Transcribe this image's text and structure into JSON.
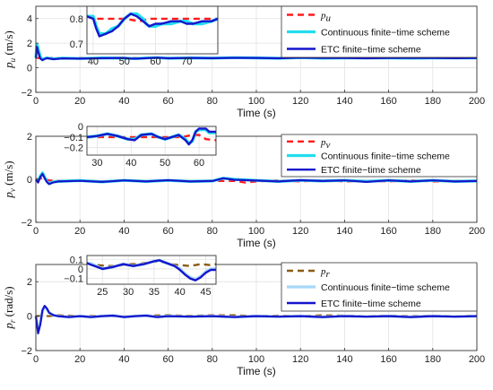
{
  "chart_data": [
    {
      "type": "line",
      "xlabel": "Time (s)",
      "ylabel_symbol": "p",
      "ylabel_sub": "u",
      "ylabel_unit": "(m/s)",
      "xlim": [
        0,
        200
      ],
      "ylim": [
        -2,
        5
      ],
      "xticks": [
        0,
        20,
        40,
        60,
        80,
        100,
        120,
        140,
        160,
        180,
        200
      ],
      "yticks": [
        -2,
        0,
        2,
        4
      ],
      "grid": true,
      "legend_position": "top-right",
      "series": [
        {
          "name": "p",
          "name_sub": "u",
          "color": "#ff1a1a",
          "style": "dashed",
          "x": [
            0,
            2,
            5,
            10,
            20,
            30,
            40,
            50,
            60,
            70,
            80,
            90,
            100,
            110,
            120,
            130,
            140,
            150,
            160,
            170,
            180,
            190,
            200
          ],
          "y": [
            0.8,
            0.8,
            0.8,
            0.8,
            0.8,
            0.8,
            0.79,
            0.8,
            0.8,
            0.8,
            0.8,
            0.8,
            0.8,
            0.8,
            0.8,
            0.8,
            0.8,
            0.8,
            0.8,
            0.8,
            0.8,
            0.8,
            0.8
          ]
        },
        {
          "name": "Continuous finite−time scheme",
          "color": "#22ddee",
          "style": "solid",
          "x": [
            0,
            0.5,
            1,
            2,
            3,
            4,
            5,
            8,
            12,
            20,
            30,
            40,
            45,
            50,
            55,
            60,
            70,
            80,
            90,
            100,
            110,
            120,
            130,
            140,
            150,
            160,
            170,
            180,
            190,
            200
          ],
          "y": [
            0.8,
            1.9,
            1.6,
            0.9,
            0.65,
            0.75,
            0.8,
            0.72,
            0.78,
            0.75,
            0.8,
            0.78,
            0.74,
            0.79,
            0.82,
            0.77,
            0.8,
            0.78,
            0.82,
            0.8,
            0.77,
            0.82,
            0.78,
            0.8,
            0.79,
            0.8,
            0.78,
            0.8,
            0.79,
            0.8
          ]
        },
        {
          "name": "ETC finite−time scheme",
          "color": "#1515cc",
          "style": "solid",
          "x": [
            0,
            0.5,
            1,
            2,
            3,
            4,
            5,
            8,
            12,
            20,
            30,
            40,
            43,
            46,
            50,
            55,
            60,
            70,
            80,
            90,
            100,
            110,
            120,
            130,
            140,
            150,
            160,
            170,
            180,
            190,
            200
          ],
          "y": [
            0.8,
            1.7,
            1.3,
            0.75,
            0.62,
            0.72,
            0.78,
            0.7,
            0.76,
            0.74,
            0.78,
            0.8,
            0.75,
            0.74,
            0.78,
            0.82,
            0.77,
            0.8,
            0.78,
            0.81,
            0.8,
            0.77,
            0.82,
            0.79,
            0.8,
            0.77,
            0.8,
            0.79,
            0.8,
            0.78,
            0.8
          ]
        }
      ],
      "inset": {
        "xlim": [
          38,
          80
        ],
        "ylim": [
          0.66,
          0.85
        ],
        "xticks": [
          40,
          50,
          60,
          70
        ],
        "yticks": [
          0.7,
          0.8
        ],
        "series": [
          {
            "x": [
              38,
              40,
              42,
              45,
              50,
              55,
              58,
              60,
              65,
              70,
              75,
              80
            ],
            "y": [
              0.81,
              0.8,
              0.8,
              0.8,
              0.8,
              0.79,
              0.8,
              0.8,
              0.8,
              0.8,
              0.8,
              0.8
            ]
          },
          {
            "x": [
              38,
              40,
              41,
              42,
              44,
              46,
              48,
              50,
              52,
              54,
              56,
              57,
              58,
              60,
              62,
              65,
              68,
              70,
              72,
              75,
              78,
              80
            ],
            "y": [
              0.81,
              0.81,
              0.77,
              0.74,
              0.74,
              0.76,
              0.77,
              0.8,
              0.82,
              0.82,
              0.8,
              0.78,
              0.77,
              0.77,
              0.78,
              0.78,
              0.79,
              0.79,
              0.78,
              0.78,
              0.79,
              0.8
            ]
          },
          {
            "x": [
              38,
              40,
              41,
              42,
              44,
              46,
              48,
              50,
              52,
              54,
              56,
              57,
              58,
              60,
              62,
              65,
              68,
              70,
              72,
              75,
              78,
              80
            ],
            "y": [
              0.81,
              0.8,
              0.76,
              0.73,
              0.74,
              0.75,
              0.77,
              0.8,
              0.82,
              0.81,
              0.79,
              0.78,
              0.77,
              0.78,
              0.78,
              0.79,
              0.79,
              0.78,
              0.78,
              0.79,
              0.79,
              0.8
            ]
          }
        ]
      }
    },
    {
      "type": "line",
      "xlabel": "Time (s)",
      "ylabel_symbol": "p",
      "ylabel_sub": "v",
      "ylabel_unit": "(m/s)",
      "xlim": [
        0,
        200
      ],
      "ylim": [
        -2,
        2
      ],
      "xticks": [
        0,
        20,
        40,
        60,
        80,
        100,
        120,
        140,
        160,
        180,
        200
      ],
      "yticks": [
        -2,
        0,
        2
      ],
      "grid": true,
      "legend_position": "top-right",
      "series": [
        {
          "name": "p",
          "name_sub": "v",
          "color": "#ff1a1a",
          "style": "dashed",
          "x": [
            0,
            3,
            6,
            10,
            20,
            30,
            40,
            50,
            60,
            70,
            80,
            90,
            95,
            100,
            110,
            120,
            130,
            140,
            150,
            160,
            170,
            180,
            190,
            200
          ],
          "y": [
            0,
            0.05,
            -0.05,
            -0.08,
            -0.05,
            -0.1,
            -0.05,
            -0.1,
            -0.05,
            -0.1,
            -0.08,
            -0.08,
            -0.15,
            -0.1,
            -0.05,
            -0.1,
            -0.05,
            -0.1,
            -0.08,
            -0.1,
            -0.05,
            -0.1,
            -0.08,
            -0.1
          ]
        },
        {
          "name": "Continuous finite−time scheme",
          "color": "#22ddee",
          "style": "solid",
          "x": [
            0,
            1,
            2,
            3,
            4,
            5,
            6,
            8,
            10,
            20,
            30,
            40,
            50,
            60,
            70,
            80,
            85,
            90,
            100,
            110,
            120,
            130,
            140,
            150,
            160,
            170,
            180,
            190,
            200
          ],
          "y": [
            0,
            -0.1,
            0.15,
            0.3,
            0.1,
            -0.1,
            -0.2,
            -0.12,
            -0.1,
            -0.06,
            -0.12,
            -0.05,
            -0.1,
            -0.05,
            -0.1,
            -0.08,
            0.05,
            0.0,
            -0.05,
            -0.1,
            -0.05,
            -0.08,
            -0.05,
            -0.1,
            -0.05,
            -0.1,
            -0.05,
            -0.1,
            -0.08
          ]
        },
        {
          "name": "ETC finite−time scheme",
          "color": "#1515cc",
          "style": "solid",
          "x": [
            0,
            1,
            2,
            3,
            4,
            5,
            6,
            8,
            10,
            20,
            30,
            40,
            50,
            60,
            70,
            80,
            85,
            90,
            100,
            110,
            120,
            130,
            140,
            150,
            160,
            170,
            180,
            190,
            200
          ],
          "y": [
            0,
            -0.15,
            0.1,
            0.25,
            0.05,
            -0.12,
            -0.22,
            -0.14,
            -0.1,
            -0.07,
            -0.12,
            -0.05,
            -0.1,
            -0.04,
            -0.1,
            -0.08,
            0.05,
            -0.02,
            -0.06,
            -0.1,
            -0.04,
            -0.08,
            -0.05,
            -0.12,
            -0.05,
            -0.1,
            -0.05,
            -0.1,
            -0.08
          ]
        }
      ],
      "inset": {
        "xlim": [
          27,
          65
        ],
        "ylim": [
          -0.27,
          0.0
        ],
        "xticks": [
          30,
          40,
          50,
          60
        ],
        "yticks": [
          -0.2,
          -0.1,
          0
        ],
        "series": [
          {
            "x": [
              27,
              30,
              35,
              40,
              45,
              50,
              55,
              58,
              60,
              62,
              65
            ],
            "y": [
              -0.1,
              -0.1,
              -0.1,
              -0.1,
              -0.1,
              -0.1,
              -0.1,
              -0.08,
              -0.08,
              -0.12,
              -0.13
            ]
          },
          {
            "x": [
              27,
              30,
              33,
              36,
              39,
              41,
              43,
              46,
              48,
              50,
              52,
              54,
              56,
              57,
              58,
              59,
              60,
              62,
              63,
              65
            ],
            "y": [
              -0.1,
              -0.09,
              -0.07,
              -0.09,
              -0.12,
              -0.12,
              -0.08,
              -0.07,
              -0.1,
              -0.12,
              -0.1,
              -0.08,
              -0.12,
              -0.16,
              -0.14,
              -0.05,
              -0.03,
              -0.03,
              -0.06,
              -0.06
            ]
          },
          {
            "x": [
              27,
              30,
              33,
              36,
              39,
              41,
              43,
              46,
              48,
              50,
              52,
              54,
              56,
              57,
              58,
              59,
              60,
              62,
              63,
              65
            ],
            "y": [
              -0.1,
              -0.09,
              -0.07,
              -0.09,
              -0.12,
              -0.13,
              -0.08,
              -0.07,
              -0.1,
              -0.12,
              -0.1,
              -0.08,
              -0.13,
              -0.17,
              -0.13,
              -0.05,
              -0.02,
              -0.02,
              -0.05,
              -0.05
            ]
          }
        ]
      }
    },
    {
      "type": "line",
      "xlabel": "Time (s)",
      "ylabel_symbol": "p",
      "ylabel_sub": "r",
      "ylabel_unit": "(rad/s)",
      "xlim": [
        0,
        200
      ],
      "ylim": [
        -2,
        3
      ],
      "xticks": [
        0,
        20,
        40,
        60,
        80,
        100,
        120,
        140,
        160,
        180,
        200
      ],
      "yticks": [
        -2,
        0,
        2
      ],
      "grid": true,
      "legend_position": "top-right",
      "series": [
        {
          "name": "p",
          "name_sub": "r",
          "color": "#8b5a14",
          "style": "dashed",
          "x": [
            0,
            3,
            6,
            10,
            20,
            30,
            40,
            50,
            60,
            70,
            80,
            90,
            100,
            110,
            120,
            130,
            140,
            150,
            160,
            170,
            180,
            190,
            200
          ],
          "y": [
            0,
            0.02,
            0.0,
            0.05,
            0.0,
            0.02,
            -0.02,
            0.03,
            0.05,
            0.02,
            0.05,
            0.05,
            0.0,
            0.03,
            0.0,
            0.05,
            0.03,
            0.0,
            0.03,
            0.0,
            0.02,
            0.0,
            0.02
          ]
        },
        {
          "name": "Continuous finite−time scheme",
          "color": "#a8d8f8",
          "style": "solid",
          "x": [
            0,
            1,
            2,
            3,
            4,
            5,
            6,
            8,
            10,
            15,
            20,
            25,
            30,
            35,
            40,
            45,
            50,
            55,
            60,
            70,
            80,
            90,
            100,
            110,
            120,
            130,
            140,
            150,
            160,
            170,
            180,
            190,
            200
          ],
          "y": [
            0,
            -0.8,
            -0.4,
            0.3,
            0.55,
            0.4,
            0.2,
            0.05,
            0.0,
            -0.05,
            0.0,
            -0.05,
            0.0,
            0.03,
            -0.05,
            0.0,
            0.03,
            -0.05,
            0.0,
            -0.03,
            0.0,
            -0.05,
            0.0,
            -0.03,
            0.0,
            -0.05,
            0.0,
            -0.03,
            0.0,
            -0.05,
            0.0,
            -0.03,
            0.0
          ]
        },
        {
          "name": "ETC finite−time scheme",
          "color": "#1515cc",
          "style": "solid",
          "x": [
            0,
            1,
            2,
            3,
            4,
            5,
            6,
            8,
            10,
            15,
            20,
            25,
            30,
            35,
            40,
            45,
            50,
            55,
            60,
            70,
            80,
            90,
            100,
            110,
            120,
            130,
            140,
            150,
            160,
            170,
            180,
            190,
            200
          ],
          "y": [
            0,
            -1.0,
            -0.5,
            0.35,
            0.6,
            0.45,
            0.2,
            0.05,
            0.0,
            -0.05,
            0.0,
            -0.05,
            0.0,
            0.03,
            -0.05,
            0.0,
            0.03,
            -0.05,
            0.0,
            -0.03,
            0.0,
            -0.05,
            0.0,
            -0.03,
            0.0,
            -0.05,
            0.0,
            -0.03,
            0.0,
            -0.05,
            0.0,
            -0.03,
            0.0
          ]
        }
      ],
      "inset": {
        "xlim": [
          22,
          47
        ],
        "ylim": [
          -0.16,
          0.14
        ],
        "xticks": [
          25,
          30,
          35,
          40,
          45
        ],
        "yticks": [
          -0.1,
          0,
          0.1
        ],
        "series": [
          {
            "x": [
              22,
              24,
              26,
              28,
              30,
              32,
              34,
              36,
              38,
              40,
              42,
              44,
              46,
              47
            ],
            "y": [
              0.06,
              0.04,
              0.03,
              0.03,
              0.05,
              0.05,
              0.07,
              0.08,
              0.05,
              0.04,
              0.03,
              0.05,
              0.04,
              0.05
            ]
          },
          {
            "x": [
              22,
              23,
              25,
              27,
              29,
              31,
              33,
              35,
              36,
              37,
              38,
              39,
              40,
              41,
              42,
              43,
              44,
              45,
              46,
              47
            ],
            "y": [
              0.06,
              0.05,
              0.0,
              0.02,
              0.05,
              0.03,
              0.05,
              0.08,
              0.09,
              0.07,
              0.05,
              0.03,
              0.0,
              -0.05,
              -0.09,
              -0.11,
              -0.08,
              -0.03,
              0.0,
              0.0
            ]
          },
          {
            "x": [
              22,
              23,
              25,
              27,
              29,
              31,
              33,
              35,
              36,
              37,
              38,
              39,
              40,
              41,
              42,
              43,
              44,
              45,
              46,
              47
            ],
            "y": [
              0.06,
              0.04,
              0.0,
              0.02,
              0.05,
              0.03,
              0.05,
              0.08,
              0.09,
              0.07,
              0.05,
              0.03,
              -0.01,
              -0.06,
              -0.1,
              -0.12,
              -0.09,
              -0.04,
              -0.01,
              -0.01
            ]
          }
        ]
      }
    }
  ]
}
